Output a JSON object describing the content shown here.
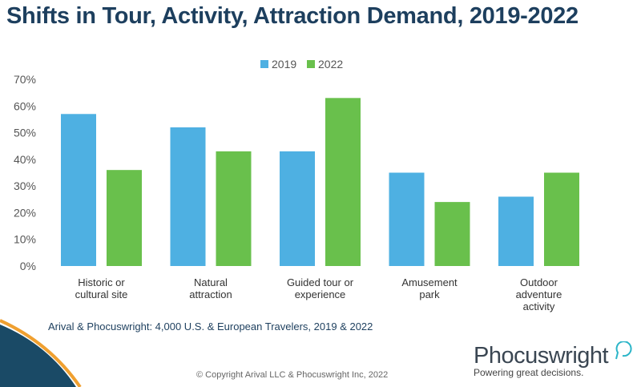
{
  "title": "Shifts in Tour, Activity, Attraction Demand, 2019-2022",
  "source": "Arival & Phocuswright: 4,000 U.S. & European Travelers, 2019 & 2022",
  "copyright": "© Copyright Arival LLC & Phocuswright Inc,  2022",
  "logo": {
    "name": "Phocuswright",
    "tagline": "Powering great decisions."
  },
  "colors": {
    "2019": "#4eb0e2",
    "2022": "#69c04c",
    "title": "#1d3f5e"
  },
  "chart_data": {
    "type": "bar",
    "title": "Shifts in Tour, Activity, Attraction Demand, 2019-2022",
    "categories": [
      [
        "Historic or",
        "cultural site"
      ],
      [
        "Natural",
        "attraction"
      ],
      [
        "Guided tour or",
        "experience"
      ],
      [
        "Amusement",
        "park"
      ],
      [
        "Outdoor",
        "adventure",
        "activity"
      ]
    ],
    "series": [
      {
        "name": "2019",
        "values": [
          57,
          52,
          43,
          35,
          26
        ]
      },
      {
        "name": "2022",
        "values": [
          36,
          43,
          63,
          24,
          35
        ]
      }
    ],
    "yticks": [
      "0%",
      "10%",
      "20%",
      "30%",
      "40%",
      "50%",
      "60%",
      "70%"
    ],
    "ylim": [
      0,
      70
    ],
    "legend": "top-center",
    "grid": false
  }
}
